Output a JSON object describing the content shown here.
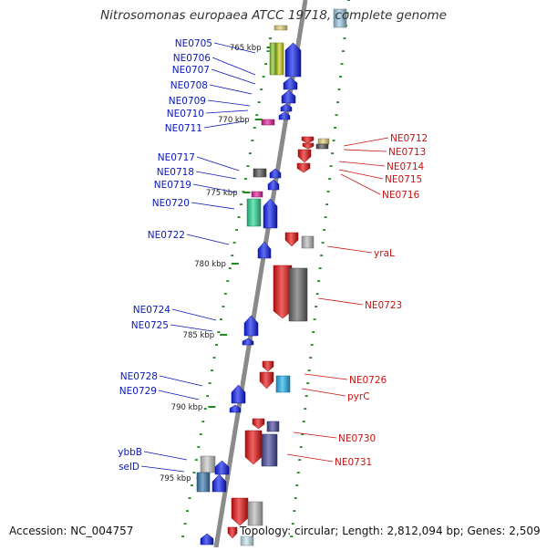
{
  "title": "Nitrosomonas europaea ATCC 19718, complete genome",
  "footer": {
    "accession": "Accession: NC_004757",
    "topology": "Topology: circular; Length: 2,812,094 bp; Genes: 2,509"
  },
  "colors": {
    "forward_label": "#0a18b8",
    "reverse_label": "#cc1111",
    "backbone": "#8a8a8a",
    "tick": "#1f8a1f",
    "forward_gene": "#0e1ef0",
    "reverse_gene": "#e81010"
  },
  "ruler": [
    {
      "label": "765 kbp"
    },
    {
      "label": "770 kbp"
    },
    {
      "label": "775 kbp"
    },
    {
      "label": "780 kbp"
    },
    {
      "label": "785 kbp"
    },
    {
      "label": "790 kbp"
    },
    {
      "label": "795 kbp"
    }
  ],
  "forward_labels": [
    "NE0705",
    "NE0706",
    "NE0707",
    "NE0708",
    "NE0709",
    "NE0710",
    "NE0711",
    "NE0717",
    "NE0718",
    "NE0719",
    "NE0720",
    "NE0722",
    "NE0724",
    "NE0725",
    "NE0728",
    "NE0729",
    "ybbB",
    "selD"
  ],
  "reverse_labels": [
    "NE0712",
    "NE0713",
    "NE0714",
    "NE0715",
    "NE0716",
    "yraL",
    "NE0723",
    "NE0726",
    "pyrC",
    "NE0730",
    "NE0731"
  ]
}
